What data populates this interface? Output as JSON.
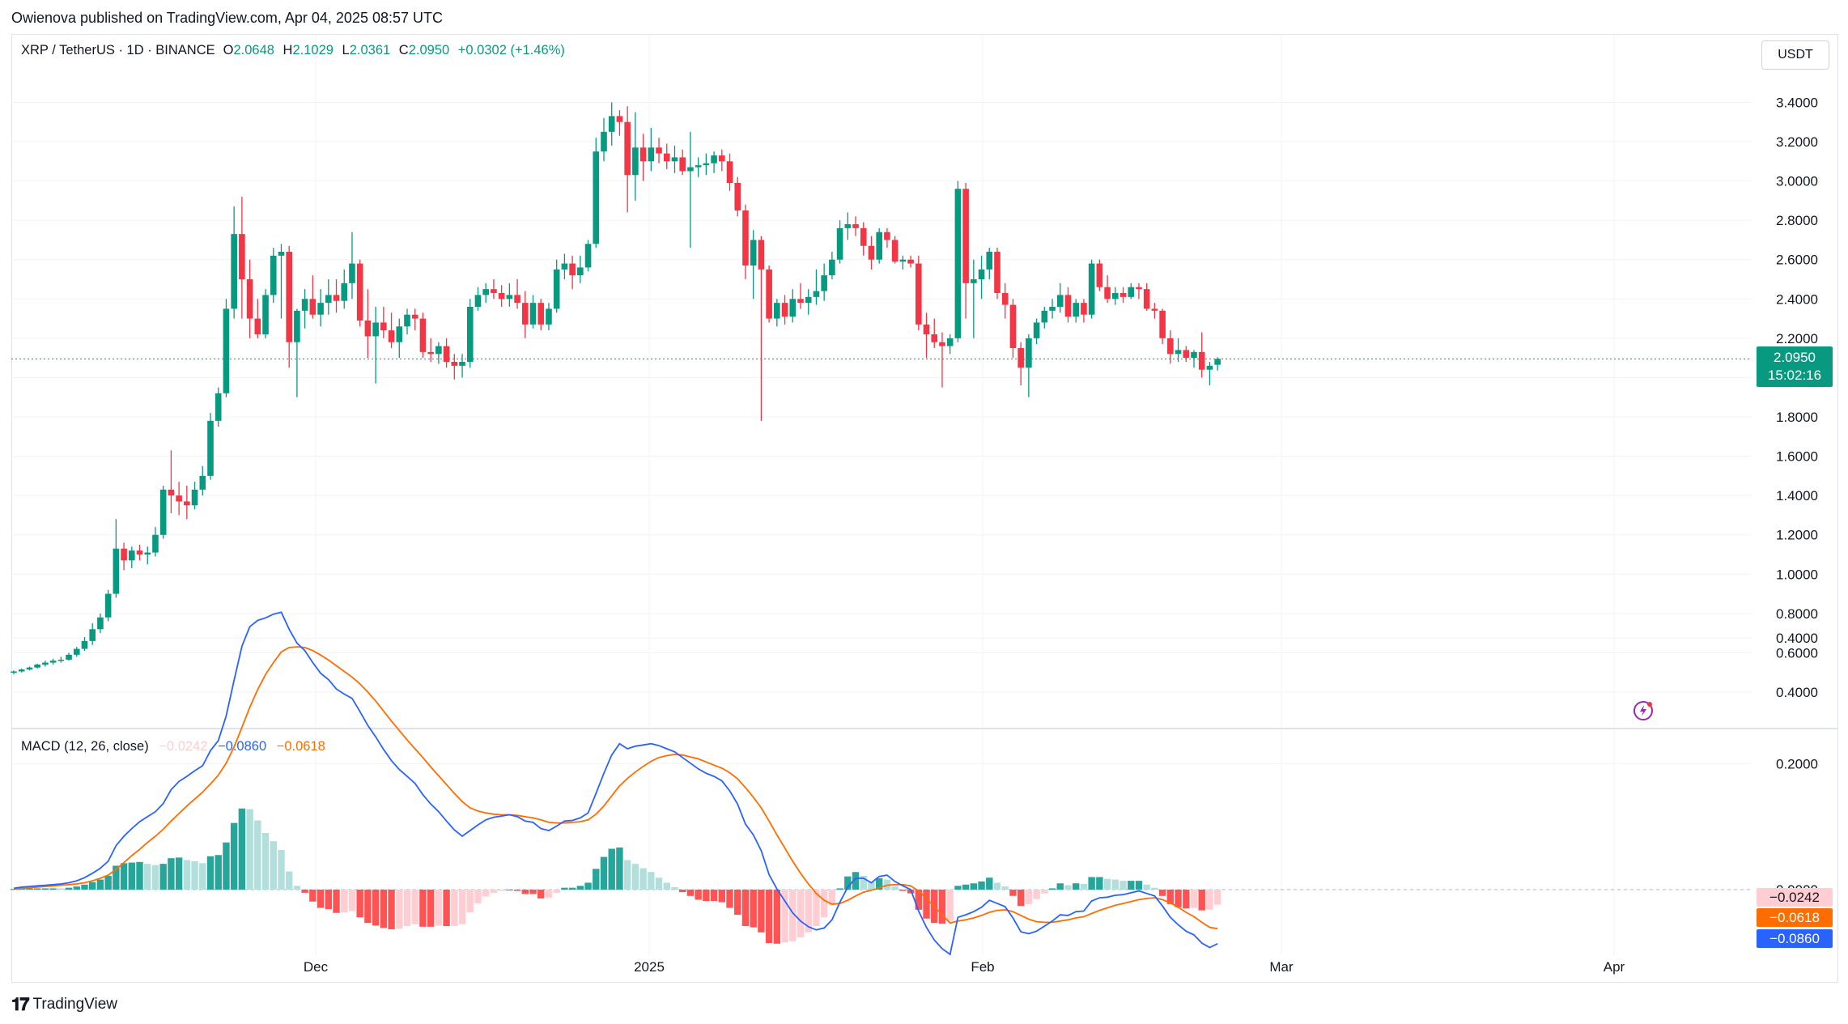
{
  "header": {
    "publisher_line": "Owienova published on TradingView.com, Apr 04, 2025 08:57 UTC"
  },
  "legend": {
    "symbol": "XRP / TetherUS · 1D · BINANCE",
    "open_label": "O",
    "open": "2.0648",
    "high_label": "H",
    "high": "2.1029",
    "low_label": "L",
    "low": "2.0361",
    "close_label": "C",
    "close": "2.0950",
    "change": "+0.0302 (+1.46%)"
  },
  "currency_button": "USDT",
  "last_price": {
    "price": "2.0950",
    "countdown": "15:02:16"
  },
  "macd_legend": {
    "label": "MACD (12, 26, close)",
    "hist": "−0.0242",
    "macd": "−0.0860",
    "signal": "−0.0618"
  },
  "macd_badges": {
    "hist": "−0.0242",
    "signal": "−0.0618",
    "macd": "−0.0860"
  },
  "footer": {
    "brand": "TradingView"
  },
  "colors": {
    "up": "#089981",
    "down": "#f23645",
    "macd": "#2962ff",
    "signal": "#ff6d00",
    "hist_up_light": "#b2dfdb",
    "hist_down_light": "#ffcdd2"
  },
  "chart_data": {
    "type": "candlestick",
    "price_axis": {
      "ticks": [
        "3.4000",
        "3.2000",
        "3.0000",
        "2.8000",
        "2.6000",
        "2.4000",
        "2.2000",
        "1.8000",
        "1.6000",
        "1.4000",
        "1.2000",
        "1.0000",
        "0.8000",
        "0.6000",
        "0.4000"
      ],
      "ylim": [
        0.3,
        3.5
      ]
    },
    "time_axis": {
      "ticks": [
        "Dec",
        "2025",
        "Feb",
        "Mar",
        "Apr"
      ]
    },
    "macd_axis": {
      "ticks": [
        "0.4000",
        "0.2000",
        "0.0000"
      ]
    },
    "candles": [
      [
        0.5,
        0.51,
        0.49,
        0.505
      ],
      [
        0.505,
        0.52,
        0.5,
        0.515
      ],
      [
        0.515,
        0.53,
        0.51,
        0.525
      ],
      [
        0.525,
        0.545,
        0.52,
        0.54
      ],
      [
        0.54,
        0.56,
        0.53,
        0.55
      ],
      [
        0.55,
        0.57,
        0.54,
        0.56
      ],
      [
        0.56,
        0.58,
        0.55,
        0.565
      ],
      [
        0.565,
        0.6,
        0.56,
        0.59
      ],
      [
        0.59,
        0.63,
        0.58,
        0.62
      ],
      [
        0.62,
        0.68,
        0.61,
        0.66
      ],
      [
        0.66,
        0.75,
        0.64,
        0.72
      ],
      [
        0.72,
        0.8,
        0.7,
        0.78
      ],
      [
        0.78,
        0.92,
        0.76,
        0.9
      ],
      [
        0.9,
        1.28,
        0.88,
        1.13
      ],
      [
        1.13,
        1.16,
        1.02,
        1.07
      ],
      [
        1.07,
        1.14,
        1.03,
        1.12
      ],
      [
        1.12,
        1.15,
        1.07,
        1.1
      ],
      [
        1.1,
        1.14,
        1.05,
        1.11
      ],
      [
        1.11,
        1.24,
        1.09,
        1.2
      ],
      [
        1.2,
        1.45,
        1.18,
        1.43
      ],
      [
        1.43,
        1.63,
        1.31,
        1.4
      ],
      [
        1.4,
        1.47,
        1.3,
        1.37
      ],
      [
        1.37,
        1.45,
        1.28,
        1.35
      ],
      [
        1.35,
        1.47,
        1.33,
        1.43
      ],
      [
        1.43,
        1.55,
        1.4,
        1.5
      ],
      [
        1.5,
        1.82,
        1.48,
        1.78
      ],
      [
        1.78,
        1.95,
        1.75,
        1.92
      ],
      [
        1.92,
        2.4,
        1.9,
        2.35
      ],
      [
        2.35,
        2.87,
        2.3,
        2.73
      ],
      [
        2.73,
        2.92,
        2.3,
        2.5
      ],
      [
        2.5,
        2.6,
        2.2,
        2.3
      ],
      [
        2.3,
        2.4,
        2.2,
        2.22
      ],
      [
        2.22,
        2.45,
        2.2,
        2.42
      ],
      [
        2.42,
        2.66,
        2.38,
        2.62
      ],
      [
        2.62,
        2.68,
        2.3,
        2.64
      ],
      [
        2.64,
        2.67,
        2.05,
        2.18
      ],
      [
        2.18,
        2.35,
        1.9,
        2.34
      ],
      [
        2.34,
        2.45,
        2.25,
        2.4
      ],
      [
        2.4,
        2.52,
        2.3,
        2.32
      ],
      [
        2.32,
        2.45,
        2.26,
        2.38
      ],
      [
        2.38,
        2.5,
        2.32,
        2.42
      ],
      [
        2.42,
        2.5,
        2.33,
        2.39
      ],
      [
        2.39,
        2.55,
        2.35,
        2.48
      ],
      [
        2.48,
        2.74,
        2.4,
        2.58
      ],
      [
        2.58,
        2.6,
        2.26,
        2.29
      ],
      [
        2.29,
        2.45,
        2.1,
        2.21
      ],
      [
        2.21,
        2.36,
        1.97,
        2.28
      ],
      [
        2.28,
        2.36,
        2.2,
        2.24
      ],
      [
        2.24,
        2.33,
        2.15,
        2.18
      ],
      [
        2.18,
        2.3,
        2.1,
        2.26
      ],
      [
        2.26,
        2.35,
        2.22,
        2.32
      ],
      [
        2.32,
        2.35,
        2.24,
        2.3
      ],
      [
        2.3,
        2.33,
        2.1,
        2.13
      ],
      [
        2.13,
        2.2,
        2.08,
        2.12
      ],
      [
        2.12,
        2.18,
        2.07,
        2.16
      ],
      [
        2.16,
        2.2,
        2.05,
        2.08
      ],
      [
        2.08,
        2.12,
        1.99,
        2.06
      ],
      [
        2.06,
        2.12,
        2.0,
        2.08
      ],
      [
        2.08,
        2.4,
        2.05,
        2.36
      ],
      [
        2.36,
        2.46,
        2.34,
        2.42
      ],
      [
        2.42,
        2.48,
        2.38,
        2.45
      ],
      [
        2.45,
        2.5,
        2.4,
        2.43
      ],
      [
        2.43,
        2.47,
        2.36,
        2.4
      ],
      [
        2.4,
        2.48,
        2.36,
        2.42
      ],
      [
        2.42,
        2.5,
        2.35,
        2.38
      ],
      [
        2.38,
        2.44,
        2.2,
        2.27
      ],
      [
        2.27,
        2.42,
        2.25,
        2.38
      ],
      [
        2.38,
        2.4,
        2.24,
        2.27
      ],
      [
        2.27,
        2.38,
        2.24,
        2.35
      ],
      [
        2.35,
        2.6,
        2.33,
        2.55
      ],
      [
        2.55,
        2.63,
        2.5,
        2.58
      ],
      [
        2.58,
        2.62,
        2.45,
        2.52
      ],
      [
        2.52,
        2.62,
        2.48,
        2.56
      ],
      [
        2.56,
        2.7,
        2.54,
        2.68
      ],
      [
        2.68,
        3.22,
        2.66,
        3.15
      ],
      [
        3.15,
        3.32,
        3.1,
        3.25
      ],
      [
        3.25,
        3.4,
        3.18,
        3.33
      ],
      [
        3.33,
        3.36,
        3.23,
        3.3
      ],
      [
        3.3,
        3.38,
        2.84,
        3.03
      ],
      [
        3.03,
        3.35,
        2.9,
        3.17
      ],
      [
        3.17,
        3.24,
        3.0,
        3.1
      ],
      [
        3.1,
        3.27,
        3.05,
        3.17
      ],
      [
        3.17,
        3.22,
        3.09,
        3.14
      ],
      [
        3.14,
        3.19,
        3.06,
        3.1
      ],
      [
        3.1,
        3.18,
        3.04,
        3.12
      ],
      [
        3.12,
        3.16,
        3.03,
        3.05
      ],
      [
        3.05,
        3.25,
        2.66,
        3.07
      ],
      [
        3.07,
        3.12,
        3.02,
        3.08
      ],
      [
        3.08,
        3.14,
        3.03,
        3.09
      ],
      [
        3.09,
        3.15,
        3.04,
        3.13
      ],
      [
        3.13,
        3.16,
        3.05,
        3.1
      ],
      [
        3.1,
        3.14,
        2.95,
        2.99
      ],
      [
        2.99,
        3.02,
        2.82,
        2.85
      ],
      [
        2.85,
        2.88,
        2.5,
        2.57
      ],
      [
        2.57,
        2.75,
        2.4,
        2.7
      ],
      [
        2.7,
        2.72,
        1.78,
        2.55
      ],
      [
        2.55,
        2.57,
        2.28,
        2.3
      ],
      [
        2.3,
        2.4,
        2.26,
        2.38
      ],
      [
        2.38,
        2.42,
        2.27,
        2.31
      ],
      [
        2.31,
        2.45,
        2.28,
        2.4
      ],
      [
        2.4,
        2.48,
        2.35,
        2.38
      ],
      [
        2.38,
        2.45,
        2.32,
        2.41
      ],
      [
        2.41,
        2.55,
        2.37,
        2.44
      ],
      [
        2.44,
        2.58,
        2.39,
        2.52
      ],
      [
        2.52,
        2.64,
        2.5,
        2.6
      ],
      [
        2.6,
        2.8,
        2.58,
        2.76
      ],
      [
        2.76,
        2.84,
        2.7,
        2.78
      ],
      [
        2.78,
        2.82,
        2.72,
        2.76
      ],
      [
        2.76,
        2.79,
        2.62,
        2.67
      ],
      [
        2.67,
        2.72,
        2.55,
        2.6
      ],
      [
        2.6,
        2.76,
        2.58,
        2.74
      ],
      [
        2.74,
        2.76,
        2.66,
        2.7
      ],
      [
        2.7,
        2.72,
        2.58,
        2.59
      ],
      [
        2.59,
        2.62,
        2.55,
        2.6
      ],
      [
        2.6,
        2.62,
        2.56,
        2.58
      ],
      [
        2.58,
        2.62,
        2.24,
        2.27
      ],
      [
        2.27,
        2.33,
        2.1,
        2.22
      ],
      [
        2.22,
        2.3,
        2.15,
        2.18
      ],
      [
        2.18,
        2.23,
        1.95,
        2.16
      ],
      [
        2.16,
        2.22,
        2.12,
        2.2
      ],
      [
        2.2,
        3.0,
        2.18,
        2.96
      ],
      [
        2.96,
        2.99,
        2.3,
        2.48
      ],
      [
        2.48,
        2.6,
        2.2,
        2.5
      ],
      [
        2.5,
        2.62,
        2.4,
        2.55
      ],
      [
        2.55,
        2.66,
        2.5,
        2.64
      ],
      [
        2.64,
        2.66,
        2.4,
        2.43
      ],
      [
        2.43,
        2.48,
        2.3,
        2.37
      ],
      [
        2.37,
        2.4,
        2.1,
        2.15
      ],
      [
        2.15,
        2.18,
        1.96,
        2.05
      ],
      [
        2.05,
        2.22,
        1.9,
        2.2
      ],
      [
        2.2,
        2.3,
        2.17,
        2.28
      ],
      [
        2.28,
        2.36,
        2.25,
        2.34
      ],
      [
        2.34,
        2.4,
        2.3,
        2.36
      ],
      [
        2.36,
        2.48,
        2.33,
        2.42
      ],
      [
        2.42,
        2.46,
        2.28,
        2.31
      ],
      [
        2.31,
        2.4,
        2.28,
        2.38
      ],
      [
        2.38,
        2.4,
        2.28,
        2.32
      ],
      [
        2.32,
        2.6,
        2.3,
        2.58
      ],
      [
        2.58,
        2.6,
        2.44,
        2.46
      ],
      [
        2.46,
        2.52,
        2.38,
        2.4
      ],
      [
        2.4,
        2.46,
        2.37,
        2.43
      ],
      [
        2.43,
        2.46,
        2.38,
        2.41
      ],
      [
        2.41,
        2.48,
        2.4,
        2.46
      ],
      [
        2.46,
        2.48,
        2.4,
        2.45
      ],
      [
        2.45,
        2.48,
        2.34,
        2.35
      ],
      [
        2.35,
        2.38,
        2.3,
        2.34
      ],
      [
        2.34,
        2.35,
        2.17,
        2.2
      ],
      [
        2.2,
        2.24,
        2.07,
        2.12
      ],
      [
        2.12,
        2.2,
        2.08,
        2.14
      ],
      [
        2.14,
        2.16,
        2.08,
        2.1
      ],
      [
        2.1,
        2.14,
        2.05,
        2.13
      ],
      [
        2.13,
        2.23,
        2.0,
        2.04
      ],
      [
        2.04,
        2.08,
        1.96,
        2.06
      ],
      [
        2.065,
        2.103,
        2.036,
        2.095
      ]
    ],
    "macd": [
      0.002,
      0.004,
      0.005,
      0.006,
      0.007,
      0.008,
      0.009,
      0.011,
      0.014,
      0.019,
      0.026,
      0.034,
      0.045,
      0.07,
      0.085,
      0.097,
      0.108,
      0.116,
      0.124,
      0.137,
      0.159,
      0.172,
      0.18,
      0.189,
      0.197,
      0.221,
      0.237,
      0.276,
      0.333,
      0.387,
      0.418,
      0.428,
      0.432,
      0.438,
      0.441,
      0.414,
      0.392,
      0.38,
      0.361,
      0.344,
      0.334,
      0.319,
      0.311,
      0.304,
      0.283,
      0.261,
      0.243,
      0.223,
      0.205,
      0.191,
      0.18,
      0.169,
      0.151,
      0.136,
      0.124,
      0.109,
      0.095,
      0.085,
      0.094,
      0.103,
      0.111,
      0.115,
      0.117,
      0.119,
      0.116,
      0.109,
      0.107,
      0.097,
      0.094,
      0.101,
      0.109,
      0.11,
      0.114,
      0.122,
      0.153,
      0.185,
      0.214,
      0.232,
      0.224,
      0.228,
      0.23,
      0.232,
      0.229,
      0.224,
      0.219,
      0.21,
      0.201,
      0.192,
      0.185,
      0.18,
      0.173,
      0.157,
      0.136,
      0.104,
      0.087,
      0.062,
      0.024,
      0.001,
      -0.018,
      -0.037,
      -0.05,
      -0.059,
      -0.064,
      -0.061,
      -0.048,
      -0.02,
      0.004,
      0.018,
      0.018,
      0.011,
      0.021,
      0.023,
      0.013,
      0.006,
      0.0,
      -0.034,
      -0.06,
      -0.08,
      -0.094,
      -0.103,
      -0.044,
      -0.04,
      -0.035,
      -0.028,
      -0.017,
      -0.022,
      -0.027,
      -0.045,
      -0.067,
      -0.07,
      -0.066,
      -0.058,
      -0.05,
      -0.04,
      -0.041,
      -0.035,
      -0.034,
      -0.018,
      -0.013,
      -0.012,
      -0.009,
      -0.008,
      -0.005,
      -0.002,
      -0.006,
      -0.01,
      -0.026,
      -0.044,
      -0.056,
      -0.066,
      -0.072,
      -0.085,
      -0.092,
      -0.086
    ],
    "signal": [
      0.001,
      0.002,
      0.003,
      0.004,
      0.005,
      0.006,
      0.007,
      0.008,
      0.009,
      0.011,
      0.014,
      0.018,
      0.023,
      0.032,
      0.043,
      0.054,
      0.064,
      0.075,
      0.085,
      0.096,
      0.109,
      0.121,
      0.133,
      0.144,
      0.155,
      0.168,
      0.182,
      0.201,
      0.227,
      0.258,
      0.29,
      0.318,
      0.342,
      0.361,
      0.378,
      0.385,
      0.386,
      0.385,
      0.38,
      0.373,
      0.365,
      0.356,
      0.347,
      0.338,
      0.327,
      0.314,
      0.3,
      0.284,
      0.268,
      0.253,
      0.238,
      0.224,
      0.21,
      0.195,
      0.181,
      0.167,
      0.153,
      0.14,
      0.13,
      0.125,
      0.122,
      0.12,
      0.119,
      0.119,
      0.118,
      0.116,
      0.114,
      0.111,
      0.107,
      0.106,
      0.106,
      0.107,
      0.108,
      0.111,
      0.12,
      0.133,
      0.149,
      0.165,
      0.177,
      0.187,
      0.196,
      0.204,
      0.21,
      0.213,
      0.215,
      0.214,
      0.211,
      0.208,
      0.203,
      0.198,
      0.193,
      0.186,
      0.176,
      0.162,
      0.147,
      0.13,
      0.109,
      0.087,
      0.066,
      0.045,
      0.026,
      0.009,
      -0.006,
      -0.017,
      -0.023,
      -0.022,
      -0.017,
      -0.01,
      -0.004,
      -0.001,
      0.003,
      0.007,
      0.008,
      0.008,
      0.006,
      -0.002,
      -0.014,
      -0.027,
      -0.04,
      -0.053,
      -0.05,
      -0.048,
      -0.045,
      -0.041,
      -0.036,
      -0.033,
      -0.032,
      -0.035,
      -0.041,
      -0.047,
      -0.051,
      -0.052,
      -0.052,
      -0.05,
      -0.048,
      -0.045,
      -0.043,
      -0.038,
      -0.033,
      -0.029,
      -0.025,
      -0.022,
      -0.019,
      -0.016,
      -0.014,
      -0.013,
      -0.016,
      -0.021,
      -0.028,
      -0.036,
      -0.043,
      -0.052,
      -0.06,
      -0.062
    ]
  }
}
